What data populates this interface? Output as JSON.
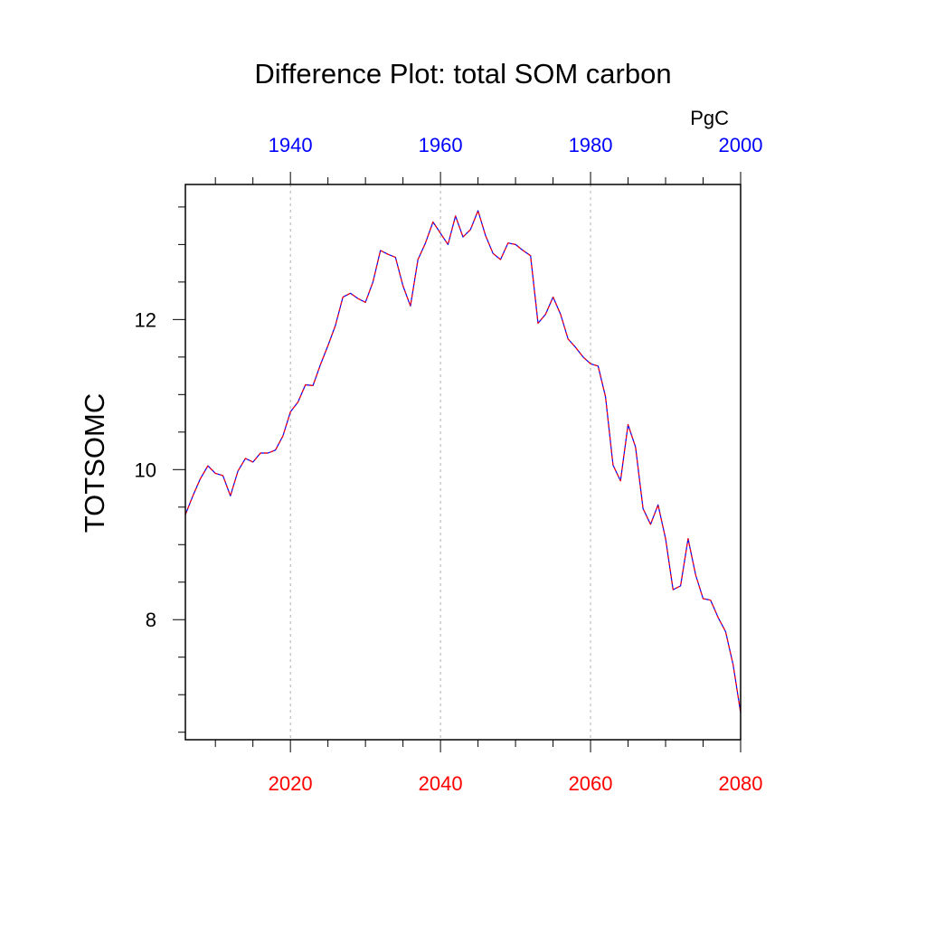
{
  "chart_data": {
    "type": "line",
    "title": "Difference Plot: total SOM carbon",
    "ylabel": "TOTSOMC",
    "units": "PgC",
    "xlim": [
      2006,
      2080
    ],
    "ylim": [
      6.4,
      13.8
    ],
    "grid": "vertical dashed at major bottom ticks",
    "bottom_axis": {
      "color": "#ff0000",
      "ticks": [
        2020,
        2040,
        2060,
        2080
      ],
      "tick_labels": [
        "2020",
        "2040",
        "2060",
        "2080"
      ]
    },
    "top_axis": {
      "color": "#0000ff",
      "ticks": [
        1940,
        1960,
        1980,
        2000
      ],
      "tick_labels": [
        "1940",
        "1960",
        "1980",
        "2000"
      ],
      "offset_years": 80
    },
    "y_ticks": [
      8,
      10,
      12
    ],
    "y_tick_labels": [
      "8",
      "10",
      "12"
    ],
    "series": [
      {
        "color": "#0000ff",
        "style": "solid",
        "x": [
          2006,
          2007,
          2008,
          2009,
          2010,
          2011,
          2012,
          2013,
          2014,
          2015,
          2016,
          2017,
          2018,
          2019,
          2020,
          2021,
          2022,
          2023,
          2024,
          2025,
          2026,
          2027,
          2028,
          2029,
          2030,
          2031,
          2032,
          2033,
          2034,
          2035,
          2036,
          2037,
          2038,
          2039,
          2040,
          2041,
          2042,
          2043,
          2044,
          2045,
          2046,
          2047,
          2048,
          2049,
          2050,
          2051,
          2052,
          2053,
          2054,
          2055,
          2056,
          2057,
          2058,
          2059,
          2060,
          2061,
          2062,
          2063,
          2064,
          2065,
          2066,
          2067,
          2068,
          2069,
          2070,
          2071,
          2072,
          2073,
          2074,
          2075,
          2076,
          2077,
          2078,
          2079,
          2080
        ],
        "values": [
          9.4,
          9.65,
          9.88,
          10.05,
          9.95,
          9.92,
          9.65,
          9.98,
          10.15,
          10.1,
          10.22,
          10.22,
          10.26,
          10.45,
          10.77,
          10.9,
          11.13,
          11.12,
          11.4,
          11.65,
          11.92,
          12.3,
          12.35,
          12.28,
          12.23,
          12.5,
          12.92,
          12.87,
          12.83,
          12.45,
          12.18,
          12.8,
          13.02,
          13.3,
          13.15,
          13.0,
          13.38,
          13.1,
          13.2,
          13.45,
          13.12,
          12.88,
          12.8,
          13.02,
          13.0,
          12.92,
          12.85,
          11.95,
          12.07,
          12.3,
          12.07,
          11.74,
          11.63,
          11.5,
          11.41,
          11.38,
          10.97,
          10.06,
          9.85,
          10.6,
          10.3,
          9.48,
          9.27,
          9.53,
          9.08,
          8.4,
          8.45,
          9.08,
          8.6,
          8.28,
          8.26,
          8.03,
          7.84,
          7.4,
          6.76
        ]
      },
      {
        "color": "#ff0000",
        "style": "dashed",
        "x": [
          2006,
          2007,
          2008,
          2009,
          2010,
          2011,
          2012,
          2013,
          2014,
          2015,
          2016,
          2017,
          2018,
          2019,
          2020,
          2021,
          2022,
          2023,
          2024,
          2025,
          2026,
          2027,
          2028,
          2029,
          2030,
          2031,
          2032,
          2033,
          2034,
          2035,
          2036,
          2037,
          2038,
          2039,
          2040,
          2041,
          2042,
          2043,
          2044,
          2045,
          2046,
          2047,
          2048,
          2049,
          2050,
          2051,
          2052,
          2053,
          2054,
          2055,
          2056,
          2057,
          2058,
          2059,
          2060,
          2061,
          2062,
          2063,
          2064,
          2065,
          2066,
          2067,
          2068,
          2069,
          2070,
          2071,
          2072,
          2073,
          2074,
          2075,
          2076,
          2077,
          2078,
          2079,
          2080
        ],
        "values": [
          9.4,
          9.65,
          9.88,
          10.05,
          9.95,
          9.92,
          9.65,
          9.98,
          10.15,
          10.1,
          10.22,
          10.22,
          10.26,
          10.45,
          10.77,
          10.9,
          11.13,
          11.12,
          11.4,
          11.65,
          11.92,
          12.3,
          12.35,
          12.28,
          12.23,
          12.5,
          12.92,
          12.87,
          12.83,
          12.45,
          12.18,
          12.8,
          13.02,
          13.3,
          13.15,
          13.0,
          13.38,
          13.1,
          13.2,
          13.45,
          13.12,
          12.88,
          12.8,
          13.02,
          13.0,
          12.92,
          12.85,
          11.95,
          12.07,
          12.3,
          12.07,
          11.74,
          11.63,
          11.5,
          11.41,
          11.38,
          10.97,
          10.06,
          9.85,
          10.6,
          10.3,
          9.48,
          9.27,
          9.53,
          9.08,
          8.4,
          8.45,
          9.08,
          8.6,
          8.28,
          8.26,
          8.03,
          7.84,
          7.4,
          6.76
        ]
      }
    ]
  }
}
